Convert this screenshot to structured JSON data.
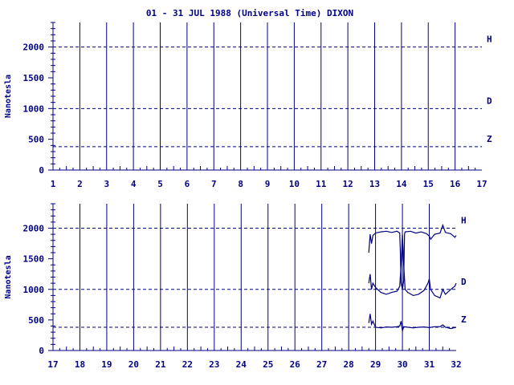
{
  "title": "01 - 31 JUL 1988 (Universal Time) DIXON",
  "colors": {
    "ink": "#000080",
    "background": "#ffffff"
  },
  "chart_data": [
    {
      "type": "line",
      "ylabel": "Nanotesla",
      "xlim": [
        1,
        17
      ],
      "ylim": [
        0,
        2400
      ],
      "x_ticks": [
        1,
        2,
        3,
        4,
        5,
        6,
        7,
        8,
        9,
        10,
        11,
        12,
        13,
        14,
        15,
        16,
        17
      ],
      "y_ticks": [
        0,
        500,
        1000,
        1500,
        2000
      ],
      "reference_lines": [
        {
          "name": "H",
          "y": 2000
        },
        {
          "name": "D",
          "y": 1000
        },
        {
          "name": "Z",
          "y": 380
        }
      ],
      "grid": "vertical lines at each day",
      "series": []
    },
    {
      "type": "line",
      "ylabel": "Nanotesla",
      "xlim": [
        17,
        32
      ],
      "ylim": [
        0,
        2400
      ],
      "x_ticks": [
        17,
        18,
        19,
        20,
        21,
        22,
        23,
        24,
        25,
        26,
        27,
        28,
        29,
        30,
        31,
        32
      ],
      "y_ticks": [
        0,
        500,
        1000,
        1500,
        2000
      ],
      "reference_lines": [
        {
          "name": "H",
          "y": 2000
        },
        {
          "name": "D",
          "y": 1000
        },
        {
          "name": "Z",
          "y": 380
        }
      ],
      "grid": "vertical lines at each day",
      "series": [
        {
          "name": "H",
          "x": [
            28.75,
            28.8,
            28.85,
            28.9,
            29.0,
            29.2,
            29.4,
            29.6,
            29.8,
            29.9,
            29.92,
            29.95,
            30.0,
            30.05,
            30.08,
            30.1,
            30.3,
            30.5,
            30.7,
            30.9,
            31.0,
            31.05,
            31.2,
            31.4,
            31.5,
            31.6,
            31.8,
            31.95,
            32.0
          ],
          "y": [
            1600,
            1900,
            1750,
            1880,
            1920,
            1940,
            1950,
            1930,
            1950,
            1920,
            1650,
            1100,
            1000,
            1150,
            1900,
            1940,
            1950,
            1920,
            1940,
            1910,
            1870,
            1820,
            1900,
            1920,
            2050,
            1930,
            1910,
            1850,
            1880
          ]
        },
        {
          "name": "D",
          "x": [
            28.75,
            28.8,
            28.85,
            28.9,
            29.0,
            29.2,
            29.4,
            29.6,
            29.8,
            29.9,
            29.95,
            30.0,
            30.05,
            30.1,
            30.2,
            30.4,
            30.6,
            30.8,
            30.95,
            31.0,
            31.05,
            31.2,
            31.4,
            31.5,
            31.6,
            31.8,
            31.95,
            32.0
          ],
          "y": [
            1100,
            1250,
            1000,
            1100,
            1030,
            950,
            920,
            950,
            970,
            1050,
            1400,
            1900,
            1400,
            1000,
            950,
            900,
            920,
            980,
            1100,
            1170,
            1000,
            900,
            860,
            1000,
            920,
            1000,
            1050,
            1100
          ]
        },
        {
          "name": "Z",
          "x": [
            28.75,
            28.8,
            28.85,
            28.9,
            29.0,
            29.2,
            29.4,
            29.6,
            29.8,
            29.9,
            29.95,
            30.0,
            30.05,
            30.2,
            30.4,
            30.6,
            30.8,
            31.0,
            31.2,
            31.4,
            31.5,
            31.6,
            31.8,
            32.0
          ],
          "y": [
            450,
            600,
            430,
            480,
            380,
            370,
            385,
            380,
            390,
            400,
            480,
            320,
            390,
            380,
            370,
            380,
            385,
            375,
            390,
            390,
            420,
            380,
            360,
            380
          ]
        }
      ]
    }
  ]
}
